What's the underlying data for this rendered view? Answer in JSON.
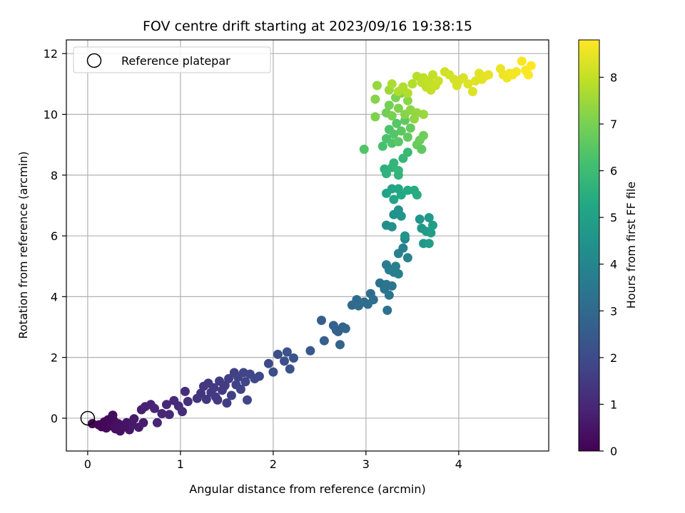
{
  "chart_data": {
    "type": "scatter",
    "title": "FOV centre drift starting at 2023/09/16 19:38:15",
    "xlabel": "Angular distance from reference (arcmin)",
    "ylabel": "Rotation from reference (arcmin)",
    "xlim": [
      -0.23,
      4.97
    ],
    "ylim": [
      -1.08,
      12.45
    ],
    "xticks": [
      0,
      1,
      2,
      3,
      4
    ],
    "yticks": [
      0,
      2,
      4,
      6,
      8,
      10,
      12
    ],
    "grid": true,
    "legend": {
      "placement": "top-left",
      "entries": [
        "Reference platepar"
      ]
    },
    "reference_point": {
      "x": 0,
      "y": 0
    },
    "colorbar": {
      "label": "Hours from first FF file",
      "colormap": "viridis",
      "range": [
        0,
        8.8
      ],
      "ticks": [
        0,
        1,
        2,
        3,
        4,
        5,
        6,
        7,
        8
      ]
    },
    "points": [
      {
        "x": 0.05,
        "y": -0.18,
        "c": 0.05
      },
      {
        "x": 0.12,
        "y": -0.22,
        "c": 0.1
      },
      {
        "x": 0.18,
        "y": -0.12,
        "c": 0.15
      },
      {
        "x": 0.2,
        "y": -0.32,
        "c": 0.2
      },
      {
        "x": 0.25,
        "y": -0.25,
        "c": 0.25
      },
      {
        "x": 0.28,
        "y": -0.08,
        "c": 0.3
      },
      {
        "x": 0.3,
        "y": -0.35,
        "c": 0.35
      },
      {
        "x": 0.33,
        "y": -0.18,
        "c": 0.4
      },
      {
        "x": 0.38,
        "y": -0.3,
        "c": 0.45
      },
      {
        "x": 0.42,
        "y": -0.15,
        "c": 0.5
      },
      {
        "x": 0.45,
        "y": -0.38,
        "c": 0.55
      },
      {
        "x": 0.48,
        "y": -0.22,
        "c": 0.6
      },
      {
        "x": 0.5,
        "y": -0.02,
        "c": 0.62
      },
      {
        "x": 0.55,
        "y": -0.3,
        "c": 0.65
      },
      {
        "x": 0.6,
        "y": -0.15,
        "c": 0.7
      },
      {
        "x": 0.22,
        "y": -0.05,
        "c": 0.2
      },
      {
        "x": 0.15,
        "y": -0.28,
        "c": 0.12
      },
      {
        "x": 0.35,
        "y": -0.42,
        "c": 0.4
      },
      {
        "x": 0.4,
        "y": -0.28,
        "c": 0.45
      },
      {
        "x": 0.27,
        "y": 0.1,
        "c": 0.3
      },
      {
        "x": 0.58,
        "y": 0.28,
        "c": 0.75
      },
      {
        "x": 0.62,
        "y": 0.38,
        "c": 0.8
      },
      {
        "x": 0.68,
        "y": 0.45,
        "c": 0.85
      },
      {
        "x": 0.72,
        "y": 0.32,
        "c": 0.9
      },
      {
        "x": 0.75,
        "y": -0.15,
        "c": 0.92
      },
      {
        "x": 0.8,
        "y": 0.15,
        "c": 0.95
      },
      {
        "x": 0.85,
        "y": 0.45,
        "c": 1.0
      },
      {
        "x": 0.88,
        "y": 0.12,
        "c": 1.02
      },
      {
        "x": 0.93,
        "y": 0.58,
        "c": 1.05
      },
      {
        "x": 0.98,
        "y": 0.4,
        "c": 1.1
      },
      {
        "x": 1.02,
        "y": 0.22,
        "c": 1.12
      },
      {
        "x": 1.05,
        "y": 0.88,
        "c": 1.15
      },
      {
        "x": 1.08,
        "y": 0.55,
        "c": 1.2
      },
      {
        "x": 1.18,
        "y": 0.65,
        "c": 1.3
      },
      {
        "x": 1.22,
        "y": 0.82,
        "c": 1.35
      },
      {
        "x": 1.25,
        "y": 1.05,
        "c": 1.38
      },
      {
        "x": 1.28,
        "y": 0.62,
        "c": 1.4
      },
      {
        "x": 1.3,
        "y": 1.15,
        "c": 1.42
      },
      {
        "x": 1.33,
        "y": 0.85,
        "c": 1.45
      },
      {
        "x": 1.36,
        "y": 1.0,
        "c": 1.48
      },
      {
        "x": 1.38,
        "y": 0.7,
        "c": 1.5
      },
      {
        "x": 1.42,
        "y": 1.22,
        "c": 1.52
      },
      {
        "x": 1.45,
        "y": 0.92,
        "c": 1.55
      },
      {
        "x": 1.48,
        "y": 1.08,
        "c": 1.58
      },
      {
        "x": 1.5,
        "y": 0.5,
        "c": 1.6
      },
      {
        "x": 1.52,
        "y": 1.3,
        "c": 1.62
      },
      {
        "x": 1.55,
        "y": 0.75,
        "c": 1.65
      },
      {
        "x": 1.58,
        "y": 1.5,
        "c": 1.68
      },
      {
        "x": 1.6,
        "y": 1.1,
        "c": 1.7
      },
      {
        "x": 1.62,
        "y": 1.35,
        "c": 1.72
      },
      {
        "x": 1.65,
        "y": 0.95,
        "c": 1.75
      },
      {
        "x": 1.68,
        "y": 1.5,
        "c": 1.78
      },
      {
        "x": 1.7,
        "y": 1.2,
        "c": 1.8
      },
      {
        "x": 1.72,
        "y": 0.6,
        "c": 1.82
      },
      {
        "x": 1.75,
        "y": 1.45,
        "c": 1.85
      },
      {
        "x": 1.8,
        "y": 1.3,
        "c": 1.88
      },
      {
        "x": 1.85,
        "y": 1.38,
        "c": 1.9
      },
      {
        "x": 1.4,
        "y": 0.6,
        "c": 1.5
      },
      {
        "x": 1.47,
        "y": 1.05,
        "c": 1.55
      },
      {
        "x": 1.95,
        "y": 1.8,
        "c": 2.0
      },
      {
        "x": 2.0,
        "y": 1.52,
        "c": 2.05
      },
      {
        "x": 2.05,
        "y": 2.1,
        "c": 2.1
      },
      {
        "x": 2.12,
        "y": 1.88,
        "c": 2.15
      },
      {
        "x": 2.15,
        "y": 2.18,
        "c": 2.2
      },
      {
        "x": 2.18,
        "y": 1.62,
        "c": 2.22
      },
      {
        "x": 2.22,
        "y": 1.98,
        "c": 2.25
      },
      {
        "x": 2.4,
        "y": 2.22,
        "c": 2.4
      },
      {
        "x": 2.52,
        "y": 3.22,
        "c": 2.6
      },
      {
        "x": 2.55,
        "y": 2.55,
        "c": 2.65
      },
      {
        "x": 2.65,
        "y": 3.05,
        "c": 2.7
      },
      {
        "x": 2.68,
        "y": 2.9,
        "c": 2.75
      },
      {
        "x": 2.72,
        "y": 2.42,
        "c": 2.8
      },
      {
        "x": 2.75,
        "y": 3.0,
        "c": 2.85
      },
      {
        "x": 2.78,
        "y": 2.95,
        "c": 2.9
      },
      {
        "x": 2.7,
        "y": 2.85,
        "c": 2.78
      },
      {
        "x": 2.85,
        "y": 3.72,
        "c": 3.0
      },
      {
        "x": 2.9,
        "y": 3.9,
        "c": 3.05
      },
      {
        "x": 2.92,
        "y": 3.7,
        "c": 3.08
      },
      {
        "x": 2.98,
        "y": 3.82,
        "c": 3.1
      },
      {
        "x": 3.02,
        "y": 3.75,
        "c": 3.12
      },
      {
        "x": 3.05,
        "y": 4.1,
        "c": 3.15
      },
      {
        "x": 3.08,
        "y": 3.9,
        "c": 3.18
      },
      {
        "x": 3.15,
        "y": 4.45,
        "c": 3.3
      },
      {
        "x": 3.2,
        "y": 4.25,
        "c": 3.35
      },
      {
        "x": 3.22,
        "y": 4.4,
        "c": 3.38
      },
      {
        "x": 3.25,
        "y": 4.05,
        "c": 3.4
      },
      {
        "x": 3.28,
        "y": 4.35,
        "c": 3.42
      },
      {
        "x": 3.23,
        "y": 3.55,
        "c": 3.32
      },
      {
        "x": 3.22,
        "y": 5.05,
        "c": 3.6
      },
      {
        "x": 3.25,
        "y": 4.88,
        "c": 3.65
      },
      {
        "x": 3.3,
        "y": 4.8,
        "c": 3.7
      },
      {
        "x": 3.32,
        "y": 5.0,
        "c": 3.75
      },
      {
        "x": 3.35,
        "y": 4.75,
        "c": 3.78
      },
      {
        "x": 3.35,
        "y": 5.42,
        "c": 3.8
      },
      {
        "x": 3.4,
        "y": 5.6,
        "c": 3.85
      },
      {
        "x": 3.45,
        "y": 5.28,
        "c": 3.9
      },
      {
        "x": 3.42,
        "y": 5.9,
        "c": 3.95
      },
      {
        "x": 3.22,
        "y": 6.35,
        "c": 4.3
      },
      {
        "x": 3.28,
        "y": 6.3,
        "c": 4.35
      },
      {
        "x": 3.3,
        "y": 6.7,
        "c": 4.4
      },
      {
        "x": 3.35,
        "y": 6.85,
        "c": 4.45
      },
      {
        "x": 3.38,
        "y": 6.65,
        "c": 4.5
      },
      {
        "x": 3.42,
        "y": 6.0,
        "c": 4.55
      },
      {
        "x": 3.58,
        "y": 6.55,
        "c": 4.6
      },
      {
        "x": 3.6,
        "y": 6.25,
        "c": 4.65
      },
      {
        "x": 3.62,
        "y": 5.75,
        "c": 4.7
      },
      {
        "x": 3.65,
        "y": 6.15,
        "c": 4.75
      },
      {
        "x": 3.68,
        "y": 6.6,
        "c": 4.8
      },
      {
        "x": 3.7,
        "y": 6.1,
        "c": 4.85
      },
      {
        "x": 3.72,
        "y": 6.35,
        "c": 4.9
      },
      {
        "x": 3.68,
        "y": 5.75,
        "c": 4.88
      },
      {
        "x": 3.22,
        "y": 7.4,
        "c": 5.1
      },
      {
        "x": 3.28,
        "y": 7.55,
        "c": 5.15
      },
      {
        "x": 3.3,
        "y": 7.2,
        "c": 5.2
      },
      {
        "x": 3.35,
        "y": 7.55,
        "c": 5.25
      },
      {
        "x": 3.38,
        "y": 7.35,
        "c": 5.3
      },
      {
        "x": 3.45,
        "y": 7.5,
        "c": 5.35
      },
      {
        "x": 3.52,
        "y": 7.5,
        "c": 5.4
      },
      {
        "x": 3.55,
        "y": 7.35,
        "c": 5.45
      },
      {
        "x": 3.2,
        "y": 8.2,
        "c": 5.6
      },
      {
        "x": 3.22,
        "y": 8.05,
        "c": 5.65
      },
      {
        "x": 3.28,
        "y": 8.25,
        "c": 5.7
      },
      {
        "x": 3.3,
        "y": 8.4,
        "c": 5.75
      },
      {
        "x": 3.35,
        "y": 8.15,
        "c": 5.8
      },
      {
        "x": 3.4,
        "y": 8.55,
        "c": 5.85
      },
      {
        "x": 3.45,
        "y": 8.75,
        "c": 5.9
      },
      {
        "x": 3.35,
        "y": 8.0,
        "c": 5.72
      },
      {
        "x": 3.18,
        "y": 8.95,
        "c": 6.2
      },
      {
        "x": 3.22,
        "y": 9.2,
        "c": 6.25
      },
      {
        "x": 3.25,
        "y": 9.5,
        "c": 6.3
      },
      {
        "x": 3.28,
        "y": 9.05,
        "c": 6.35
      },
      {
        "x": 3.3,
        "y": 9.35,
        "c": 6.4
      },
      {
        "x": 3.33,
        "y": 9.7,
        "c": 6.45
      },
      {
        "x": 3.35,
        "y": 9.1,
        "c": 6.5
      },
      {
        "x": 3.38,
        "y": 9.45,
        "c": 6.55
      },
      {
        "x": 3.42,
        "y": 9.8,
        "c": 6.6
      },
      {
        "x": 3.45,
        "y": 9.25,
        "c": 6.65
      },
      {
        "x": 3.48,
        "y": 9.55,
        "c": 6.7
      },
      {
        "x": 3.55,
        "y": 9.0,
        "c": 6.75
      },
      {
        "x": 3.58,
        "y": 9.15,
        "c": 6.8
      },
      {
        "x": 3.62,
        "y": 9.3,
        "c": 6.85
      },
      {
        "x": 2.98,
        "y": 8.85,
        "c": 6.4
      },
      {
        "x": 3.6,
        "y": 8.85,
        "c": 6.6
      },
      {
        "x": 3.22,
        "y": 10.05,
        "c": 6.9
      },
      {
        "x": 3.25,
        "y": 10.3,
        "c": 6.95
      },
      {
        "x": 3.28,
        "y": 9.95,
        "c": 7.0
      },
      {
        "x": 3.32,
        "y": 10.55,
        "c": 7.05
      },
      {
        "x": 3.35,
        "y": 10.2,
        "c": 7.1
      },
      {
        "x": 3.38,
        "y": 10.7,
        "c": 7.15
      },
      {
        "x": 3.42,
        "y": 10.0,
        "c": 7.2
      },
      {
        "x": 3.45,
        "y": 10.45,
        "c": 7.25
      },
      {
        "x": 3.48,
        "y": 10.15,
        "c": 7.3
      },
      {
        "x": 3.52,
        "y": 9.85,
        "c": 7.35
      },
      {
        "x": 3.55,
        "y": 10.05,
        "c": 7.4
      },
      {
        "x": 3.62,
        "y": 10.0,
        "c": 7.45
      },
      {
        "x": 3.1,
        "y": 9.92,
        "c": 7.1
      },
      {
        "x": 3.1,
        "y": 10.5,
        "c": 7.2
      },
      {
        "x": 3.12,
        "y": 10.95,
        "c": 7.4
      },
      {
        "x": 3.25,
        "y": 10.8,
        "c": 7.5
      },
      {
        "x": 3.28,
        "y": 11.0,
        "c": 7.7
      },
      {
        "x": 3.35,
        "y": 10.75,
        "c": 7.72
      },
      {
        "x": 3.4,
        "y": 10.9,
        "c": 7.75
      },
      {
        "x": 3.45,
        "y": 10.7,
        "c": 7.78
      },
      {
        "x": 3.5,
        "y": 11.0,
        "c": 7.8
      },
      {
        "x": 3.55,
        "y": 11.25,
        "c": 7.85
      },
      {
        "x": 3.6,
        "y": 11.05,
        "c": 7.9
      },
      {
        "x": 3.62,
        "y": 11.2,
        "c": 7.92
      },
      {
        "x": 3.65,
        "y": 10.9,
        "c": 7.95
      },
      {
        "x": 3.68,
        "y": 11.1,
        "c": 7.98
      },
      {
        "x": 3.7,
        "y": 10.8,
        "c": 8.0
      },
      {
        "x": 3.72,
        "y": 11.3,
        "c": 8.02
      },
      {
        "x": 3.75,
        "y": 10.95,
        "c": 8.05
      },
      {
        "x": 3.78,
        "y": 11.1,
        "c": 8.08
      },
      {
        "x": 3.85,
        "y": 11.4,
        "c": 8.15
      },
      {
        "x": 3.9,
        "y": 11.3,
        "c": 8.2
      },
      {
        "x": 3.95,
        "y": 11.15,
        "c": 8.22
      },
      {
        "x": 3.98,
        "y": 10.95,
        "c": 8.25
      },
      {
        "x": 4.0,
        "y": 11.1,
        "c": 8.28
      },
      {
        "x": 4.05,
        "y": 11.2,
        "c": 8.3
      },
      {
        "x": 4.1,
        "y": 11.0,
        "c": 8.32
      },
      {
        "x": 4.15,
        "y": 10.75,
        "c": 8.35
      },
      {
        "x": 4.18,
        "y": 11.1,
        "c": 8.38
      },
      {
        "x": 4.22,
        "y": 11.35,
        "c": 8.4
      },
      {
        "x": 4.25,
        "y": 11.15,
        "c": 8.42
      },
      {
        "x": 4.28,
        "y": 11.25,
        "c": 8.45
      },
      {
        "x": 4.32,
        "y": 11.3,
        "c": 8.48
      },
      {
        "x": 4.45,
        "y": 11.5,
        "c": 8.55
      },
      {
        "x": 4.48,
        "y": 11.3,
        "c": 8.58
      },
      {
        "x": 4.52,
        "y": 11.2,
        "c": 8.6
      },
      {
        "x": 4.55,
        "y": 11.35,
        "c": 8.62
      },
      {
        "x": 4.58,
        "y": 11.3,
        "c": 8.65
      },
      {
        "x": 4.62,
        "y": 11.4,
        "c": 8.68
      },
      {
        "x": 4.68,
        "y": 11.75,
        "c": 8.72
      },
      {
        "x": 4.72,
        "y": 11.45,
        "c": 8.75
      },
      {
        "x": 4.75,
        "y": 11.3,
        "c": 8.78
      },
      {
        "x": 4.78,
        "y": 11.6,
        "c": 8.8
      }
    ]
  }
}
